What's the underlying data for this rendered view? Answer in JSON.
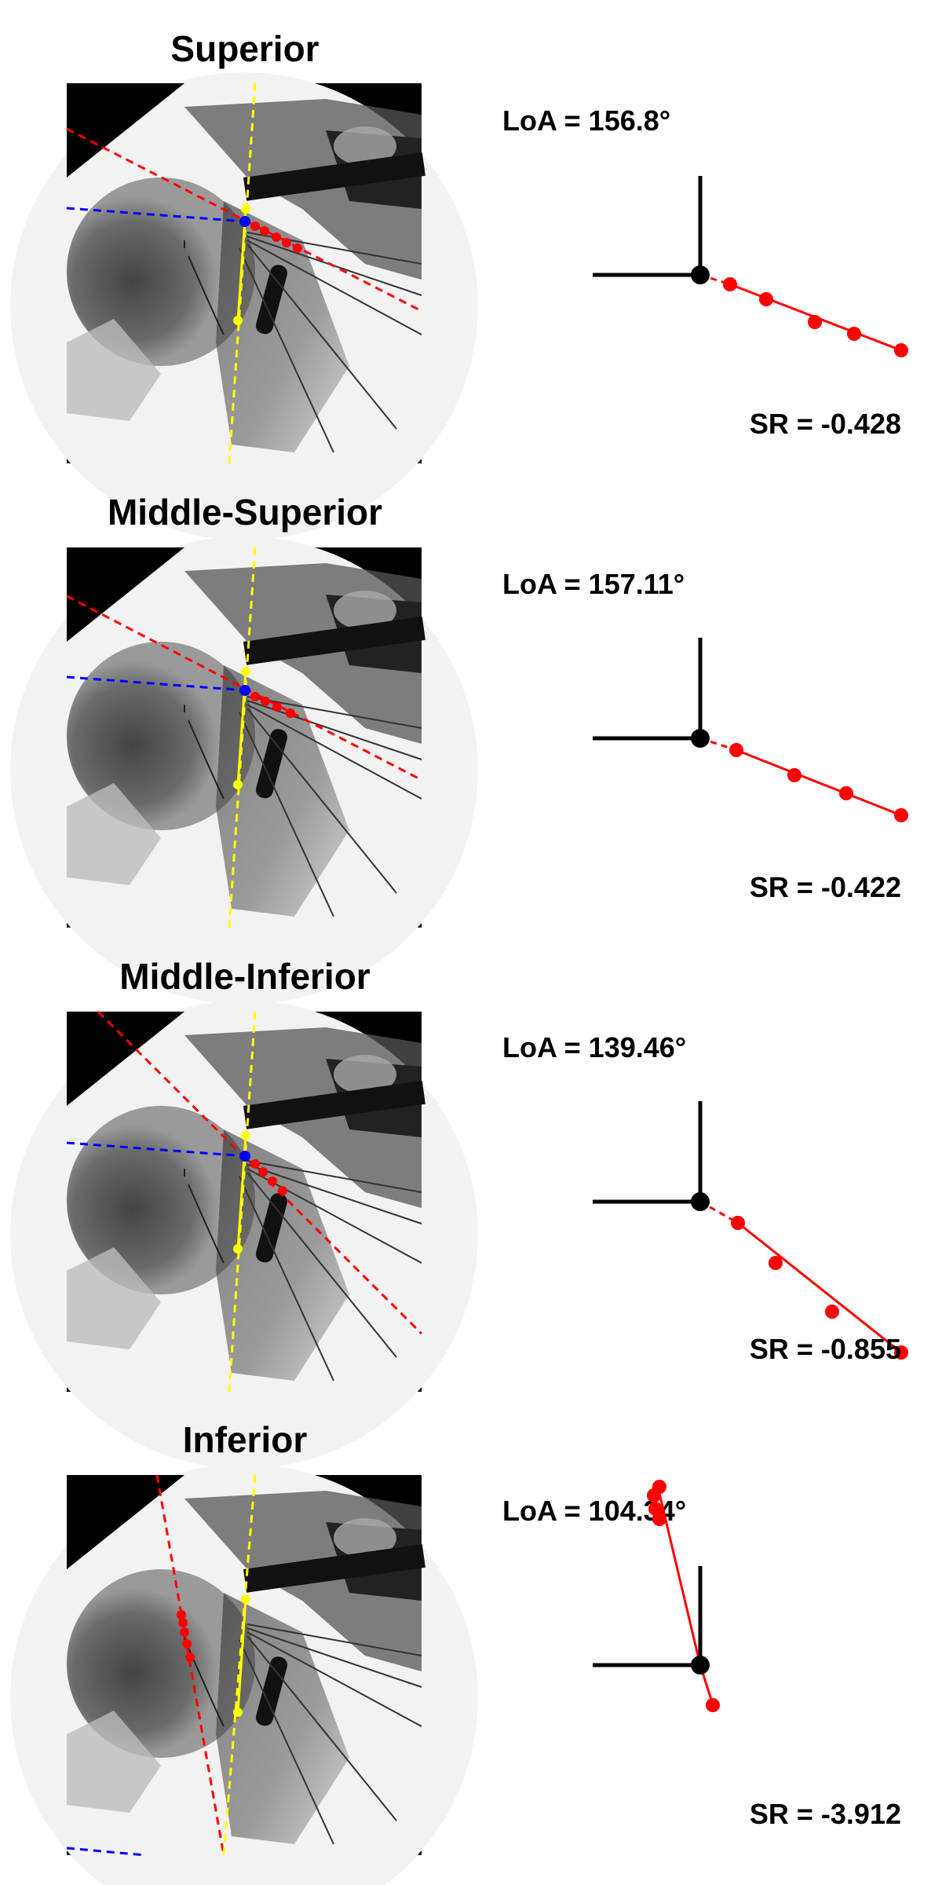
{
  "colors": {
    "loa_line": "#ff0000",
    "humeral_axis": "#ffff00",
    "reference_line": "#0000ff",
    "axes": "#000000",
    "background": "#ffffff",
    "image_background": "#000000"
  },
  "panels": [
    {
      "title": "Superior",
      "loa_text": "LoA = 156.8°",
      "sr_text": "SR = -0.428",
      "loa_deg": 156.8,
      "sr": -0.428
    },
    {
      "title": "Middle-Superior",
      "loa_text": "LoA = 157.11°",
      "sr_text": "SR = -0.422",
      "loa_deg": 157.11,
      "sr": -0.422
    },
    {
      "title": "Middle-Inferior",
      "loa_text": "LoA = 139.46°",
      "sr_text": "SR = -0.855",
      "loa_deg": 139.46,
      "sr": -0.855
    },
    {
      "title": "Inferior",
      "loa_text": "LoA = 104.34°",
      "sr_text": "SR = -3.912",
      "loa_deg": 104.34,
      "sr": -3.912
    }
  ]
}
